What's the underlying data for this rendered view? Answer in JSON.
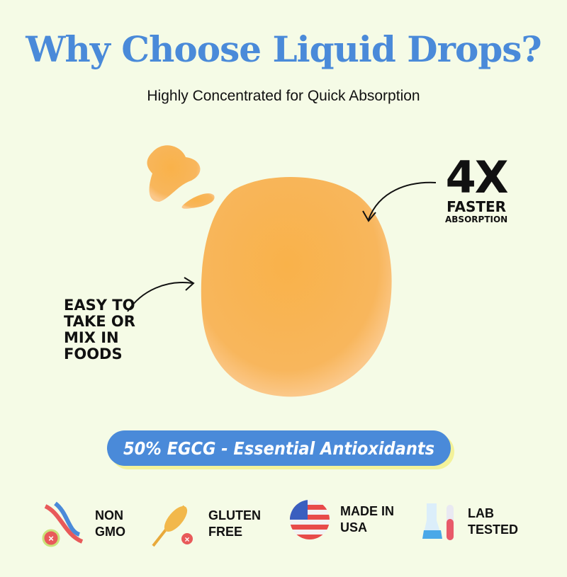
{
  "header": {
    "title": "Why Choose Liquid Drops?",
    "subtitle": "Highly Concentrated for Quick Absorption"
  },
  "callouts": {
    "faster": {
      "big": "4X",
      "line1": "FASTER",
      "line2": "ABSORPTION"
    },
    "easy": {
      "lines": [
        "EASY TO",
        "TAKE OR",
        "MIX IN",
        "FOODS"
      ]
    }
  },
  "banner": {
    "text": "50% EGCG - Essential Antioxidants"
  },
  "badges": [
    {
      "icon": "dna-icon",
      "lines": [
        "NON",
        "GMO"
      ]
    },
    {
      "icon": "wheat-icon",
      "lines": [
        "GLUTEN",
        "FREE"
      ]
    },
    {
      "icon": "usa-flag-icon",
      "lines": [
        "MADE IN",
        "USA"
      ]
    },
    {
      "icon": "test-tube-icon",
      "lines": [
        "LAB",
        "TESTED"
      ]
    }
  ],
  "colors": {
    "background": "#f5fbe6",
    "accent": "#4a8ad9",
    "drop": "#f7b04a",
    "banner_shadow": "#f3f29a"
  }
}
